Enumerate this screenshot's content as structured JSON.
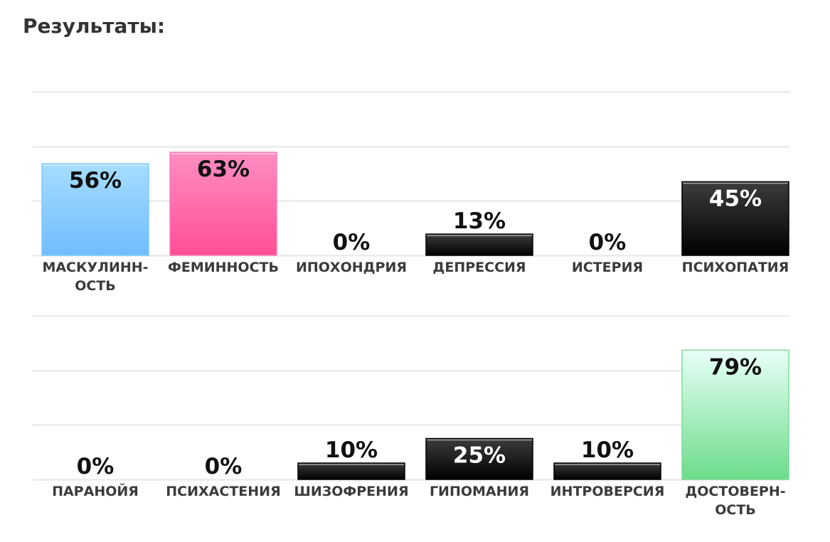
{
  "title": "Результаты:",
  "colors": {
    "grid": "#e6e6e6",
    "black_top": "#3c3c3c",
    "black_bottom": "#000000",
    "blue_top": "#a6ddff",
    "blue_bottom": "#6fbcff",
    "pink_top": "#ff8ec3",
    "pink_bottom": "#ff4e96",
    "green_top": "#e8fff8",
    "green_bottom": "#6cdc8a"
  },
  "chart_data": [
    {
      "type": "bar",
      "unit": "%",
      "ylim": [
        0,
        100
      ],
      "grid": true,
      "categories": [
        [
          "МАСКУЛИНН-",
          "ОСТЬ"
        ],
        [
          "ФЕМИННОСТЬ"
        ],
        [
          "ИПОХОНДРИЯ"
        ],
        [
          "ДЕПРЕССИЯ"
        ],
        [
          "ИСТЕРИЯ"
        ],
        [
          "ПСИХОПАТИЯ"
        ]
      ],
      "values": [
        56,
        63,
        0,
        13,
        0,
        45
      ],
      "bar_colors": [
        "blue",
        "pink",
        "black",
        "black",
        "black",
        "black"
      ]
    },
    {
      "type": "bar",
      "unit": "%",
      "ylim": [
        0,
        100
      ],
      "grid": true,
      "categories": [
        [
          "ПАРАНОЙЯ"
        ],
        [
          "ПСИХАСТЕНИЯ"
        ],
        [
          "ШИЗОФРЕНИЯ"
        ],
        [
          "ГИПОМАНИЯ"
        ],
        [
          "ИНТРОВЕРСИЯ"
        ],
        [
          "ДОСТОВЕРН-",
          "ОСТЬ"
        ]
      ],
      "values": [
        0,
        0,
        10,
        25,
        10,
        79
      ],
      "bar_colors": [
        "black",
        "black",
        "black",
        "black",
        "black",
        "green"
      ]
    }
  ]
}
